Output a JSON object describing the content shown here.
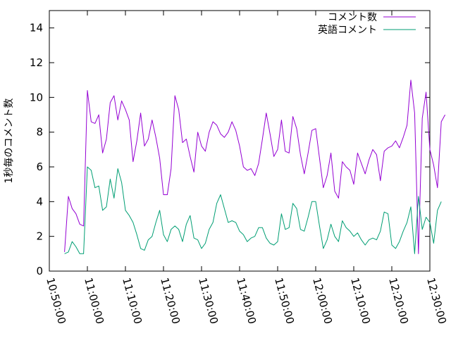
{
  "chart_data": {
    "type": "line",
    "title": "",
    "xlabel": "",
    "ylabel": "1秒毎のコメント数",
    "xlim": [
      "10:50:00",
      "12:30:00"
    ],
    "ylim": [
      0,
      15
    ],
    "x_ticks": [
      "10:50:00",
      "11:00:00",
      "11:10:00",
      "11:20:00",
      "11:30:00",
      "11:40:00",
      "11:50:00",
      "12:00:00",
      "12:10:00",
      "12:20:00",
      "12:30:00"
    ],
    "y_ticks": [
      0,
      2,
      4,
      6,
      8,
      10,
      12,
      14
    ],
    "grid": false,
    "legend_position": "top-right",
    "series": [
      {
        "name": "コメント数",
        "color": "#9400d3",
        "points": [
          [
            "10:54:00",
            1.1
          ],
          [
            "10:55:00",
            4.3
          ],
          [
            "10:56:00",
            3.6
          ],
          [
            "10:57:00",
            3.3
          ],
          [
            "10:58:00",
            2.7
          ],
          [
            "10:59:00",
            2.6
          ],
          [
            "11:00:00",
            10.4
          ],
          [
            "11:01:00",
            8.6
          ],
          [
            "11:02:00",
            8.5
          ],
          [
            "11:03:00",
            9.0
          ],
          [
            "11:04:00",
            6.8
          ],
          [
            "11:05:00",
            7.6
          ],
          [
            "11:06:00",
            9.7
          ],
          [
            "11:07:00",
            10.1
          ],
          [
            "11:08:00",
            8.7
          ],
          [
            "11:09:00",
            9.8
          ],
          [
            "11:10:00",
            9.3
          ],
          [
            "11:11:00",
            8.7
          ],
          [
            "11:12:00",
            6.3
          ],
          [
            "11:13:00",
            7.5
          ],
          [
            "11:14:00",
            9.1
          ],
          [
            "11:15:00",
            7.2
          ],
          [
            "11:16:00",
            7.6
          ],
          [
            "11:17:00",
            8.7
          ],
          [
            "11:18:00",
            7.7
          ],
          [
            "11:19:00",
            6.5
          ],
          [
            "11:20:00",
            4.4
          ],
          [
            "11:21:00",
            4.4
          ],
          [
            "11:22:00",
            5.9
          ],
          [
            "11:23:00",
            10.1
          ],
          [
            "11:24:00",
            9.3
          ],
          [
            "11:25:00",
            7.4
          ],
          [
            "11:26:00",
            7.6
          ],
          [
            "11:27:00",
            6.6
          ],
          [
            "11:28:00",
            5.7
          ],
          [
            "11:29:00",
            8.0
          ],
          [
            "11:30:00",
            7.2
          ],
          [
            "11:31:00",
            6.9
          ],
          [
            "11:32:00",
            8.0
          ],
          [
            "11:33:00",
            8.6
          ],
          [
            "11:34:00",
            8.4
          ],
          [
            "11:35:00",
            7.9
          ],
          [
            "11:36:00",
            7.7
          ],
          [
            "11:37:00",
            8.0
          ],
          [
            "11:38:00",
            8.6
          ],
          [
            "11:39:00",
            8.1
          ],
          [
            "11:40:00",
            7.2
          ],
          [
            "11:41:00",
            6.0
          ],
          [
            "11:42:00",
            5.8
          ],
          [
            "11:43:00",
            5.9
          ],
          [
            "11:44:00",
            5.5
          ],
          [
            "11:45:00",
            6.2
          ],
          [
            "11:46:00",
            7.6
          ],
          [
            "11:47:00",
            9.1
          ],
          [
            "11:48:00",
            7.9
          ],
          [
            "11:49:00",
            6.6
          ],
          [
            "11:50:00",
            7.0
          ],
          [
            "11:51:00",
            8.7
          ],
          [
            "11:52:00",
            6.9
          ],
          [
            "11:53:00",
            6.8
          ],
          [
            "11:54:00",
            8.9
          ],
          [
            "11:55:00",
            8.2
          ],
          [
            "11:56:00",
            6.7
          ],
          [
            "11:57:00",
            5.6
          ],
          [
            "11:58:00",
            6.8
          ],
          [
            "11:59:00",
            8.1
          ],
          [
            "12:00:00",
            8.2
          ],
          [
            "12:01:00",
            6.5
          ],
          [
            "12:02:00",
            4.8
          ],
          [
            "12:03:00",
            5.5
          ],
          [
            "12:04:00",
            6.8
          ],
          [
            "12:05:00",
            4.6
          ],
          [
            "12:06:00",
            4.2
          ],
          [
            "12:07:00",
            6.3
          ],
          [
            "12:08:00",
            6.0
          ],
          [
            "12:09:00",
            5.8
          ],
          [
            "12:10:00",
            5.0
          ],
          [
            "12:11:00",
            6.8
          ],
          [
            "12:12:00",
            6.2
          ],
          [
            "12:13:00",
            5.6
          ],
          [
            "12:14:00",
            6.4
          ],
          [
            "12:15:00",
            7.0
          ],
          [
            "12:16:00",
            6.7
          ],
          [
            "12:17:00",
            5.2
          ],
          [
            "12:18:00",
            6.9
          ],
          [
            "12:19:00",
            7.1
          ],
          [
            "12:20:00",
            7.2
          ],
          [
            "12:21:00",
            7.5
          ],
          [
            "12:22:00",
            7.1
          ],
          [
            "12:23:00",
            7.7
          ],
          [
            "12:24:00",
            8.4
          ],
          [
            "12:25:00",
            11.0
          ],
          [
            "12:26:00",
            9.1
          ],
          [
            "12:27:00",
            1.0
          ],
          [
            "12:28:00",
            8.8
          ],
          [
            "12:29:00",
            10.3
          ],
          [
            "12:30:00",
            7.0
          ],
          [
            "12:31:00",
            6.1
          ],
          [
            "12:32:00",
            4.8
          ],
          [
            "12:33:00",
            8.6
          ],
          [
            "12:34:00",
            9.0
          ]
        ]
      },
      {
        "name": "英語コメント",
        "color": "#009e73",
        "points": [
          [
            "10:54:00",
            1.0
          ],
          [
            "10:55:00",
            1.1
          ],
          [
            "10:56:00",
            1.7
          ],
          [
            "10:57:00",
            1.4
          ],
          [
            "10:58:00",
            1.0
          ],
          [
            "10:59:00",
            1.0
          ],
          [
            "11:00:00",
            6.0
          ],
          [
            "11:01:00",
            5.8
          ],
          [
            "11:02:00",
            4.8
          ],
          [
            "11:03:00",
            4.9
          ],
          [
            "11:04:00",
            3.5
          ],
          [
            "11:05:00",
            3.7
          ],
          [
            "11:06:00",
            5.3
          ],
          [
            "11:07:00",
            4.2
          ],
          [
            "11:08:00",
            5.9
          ],
          [
            "11:09:00",
            5.1
          ],
          [
            "11:10:00",
            3.5
          ],
          [
            "11:11:00",
            3.2
          ],
          [
            "11:12:00",
            2.8
          ],
          [
            "11:13:00",
            2.1
          ],
          [
            "11:14:00",
            1.3
          ],
          [
            "11:15:00",
            1.2
          ],
          [
            "11:16:00",
            1.8
          ],
          [
            "11:17:00",
            2.0
          ],
          [
            "11:18:00",
            2.8
          ],
          [
            "11:19:00",
            3.5
          ],
          [
            "11:20:00",
            2.1
          ],
          [
            "11:21:00",
            1.7
          ],
          [
            "11:22:00",
            2.4
          ],
          [
            "11:23:00",
            2.6
          ],
          [
            "11:24:00",
            2.4
          ],
          [
            "11:25:00",
            1.7
          ],
          [
            "11:26:00",
            2.7
          ],
          [
            "11:27:00",
            3.2
          ],
          [
            "11:28:00",
            1.9
          ],
          [
            "11:29:00",
            1.8
          ],
          [
            "11:30:00",
            1.3
          ],
          [
            "11:31:00",
            1.6
          ],
          [
            "11:32:00",
            2.4
          ],
          [
            "11:33:00",
            2.8
          ],
          [
            "11:34:00",
            3.9
          ],
          [
            "11:35:00",
            4.4
          ],
          [
            "11:36:00",
            3.6
          ],
          [
            "11:37:00",
            2.8
          ],
          [
            "11:38:00",
            2.9
          ],
          [
            "11:39:00",
            2.8
          ],
          [
            "11:40:00",
            2.3
          ],
          [
            "11:41:00",
            2.1
          ],
          [
            "11:42:00",
            1.7
          ],
          [
            "11:43:00",
            1.9
          ],
          [
            "11:44:00",
            2.0
          ],
          [
            "11:45:00",
            2.5
          ],
          [
            "11:46:00",
            2.5
          ],
          [
            "11:47:00",
            1.9
          ],
          [
            "11:48:00",
            1.6
          ],
          [
            "11:49:00",
            1.5
          ],
          [
            "11:50:00",
            1.7
          ],
          [
            "11:51:00",
            3.3
          ],
          [
            "11:52:00",
            2.4
          ],
          [
            "11:53:00",
            2.5
          ],
          [
            "11:54:00",
            3.9
          ],
          [
            "11:55:00",
            3.6
          ],
          [
            "11:56:00",
            2.4
          ],
          [
            "11:57:00",
            2.3
          ],
          [
            "11:58:00",
            3.1
          ],
          [
            "11:59:00",
            4.0
          ],
          [
            "12:00:00",
            4.0
          ],
          [
            "12:01:00",
            2.6
          ],
          [
            "12:02:00",
            1.3
          ],
          [
            "12:03:00",
            1.8
          ],
          [
            "12:04:00",
            2.7
          ],
          [
            "12:05:00",
            2.0
          ],
          [
            "12:06:00",
            1.7
          ],
          [
            "12:07:00",
            2.9
          ],
          [
            "12:08:00",
            2.5
          ],
          [
            "12:09:00",
            2.3
          ],
          [
            "12:10:00",
            2.0
          ],
          [
            "12:11:00",
            2.2
          ],
          [
            "12:12:00",
            1.8
          ],
          [
            "12:13:00",
            1.5
          ],
          [
            "12:14:00",
            1.8
          ],
          [
            "12:15:00",
            1.9
          ],
          [
            "12:16:00",
            1.8
          ],
          [
            "12:17:00",
            2.3
          ],
          [
            "12:18:00",
            3.4
          ],
          [
            "12:19:00",
            3.3
          ],
          [
            "12:20:00",
            1.5
          ],
          [
            "12:21:00",
            1.3
          ],
          [
            "12:22:00",
            1.7
          ],
          [
            "12:23:00",
            2.3
          ],
          [
            "12:24:00",
            2.8
          ],
          [
            "12:25:00",
            3.7
          ],
          [
            "12:26:00",
            1.0
          ],
          [
            "12:27:00",
            4.3
          ],
          [
            "12:28:00",
            2.4
          ],
          [
            "12:29:00",
            3.1
          ],
          [
            "12:30:00",
            2.8
          ],
          [
            "12:31:00",
            1.6
          ],
          [
            "12:32:00",
            3.5
          ],
          [
            "12:33:00",
            4.0
          ]
        ]
      }
    ]
  }
}
